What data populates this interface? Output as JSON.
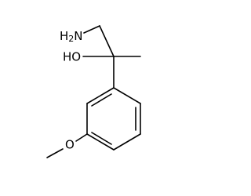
{
  "labels": {
    "amine": [
      "H",
      "2",
      "N"
    ],
    "hydroxyl": "HO",
    "ether": "O"
  }
}
